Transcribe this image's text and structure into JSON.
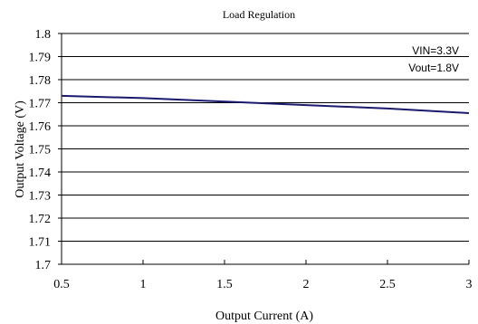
{
  "chart_data": {
    "type": "line",
    "title": "Load Regulation",
    "xlabel": "Output Current (A)",
    "ylabel": "Output Voltage (V)",
    "xlim": [
      0.5,
      3
    ],
    "ylim": [
      1.7,
      1.8
    ],
    "x_ticks": [
      0.5,
      1,
      1.5,
      2,
      2.5,
      3
    ],
    "x_tick_labels": [
      "0.5",
      "1",
      "1.5",
      "2",
      "2.5",
      "3"
    ],
    "y_ticks": [
      1.7,
      1.71,
      1.72,
      1.73,
      1.74,
      1.75,
      1.76,
      1.77,
      1.78,
      1.79,
      1.8
    ],
    "y_tick_labels": [
      "1.7",
      "1.71",
      "1.72",
      "1.73",
      "1.74",
      "1.75",
      "1.76",
      "1.77",
      "1.78",
      "1.79",
      "1.8"
    ],
    "grid": "horizontal",
    "annotations": [
      "VIN=3.3V",
      "Vout=1.8V"
    ],
    "series": [
      {
        "color": "#1a1a6e",
        "x": [
          0.5,
          1,
          1.5,
          2,
          2.5,
          3
        ],
        "y": [
          1.773,
          1.772,
          1.7705,
          1.769,
          1.7675,
          1.7655
        ]
      }
    ]
  }
}
